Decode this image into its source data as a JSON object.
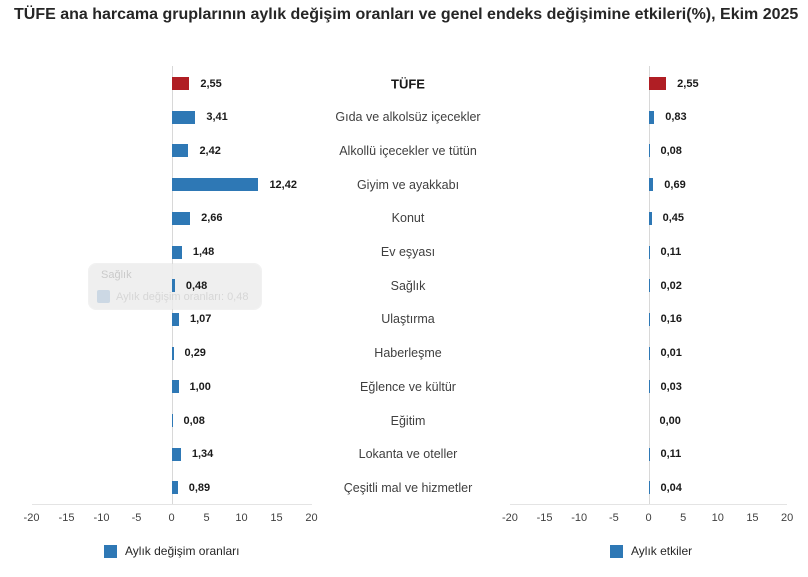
{
  "title": "TÜFE ana harcama gruplarının aylık değişim oranları ve genel endeks değişimine etkileri(%), Ekim 2025",
  "chart_data": {
    "type": "bar",
    "orientation": "horizontal",
    "categories": [
      "TÜFE",
      "Gıda ve alkolsüz içecekler",
      "Alkollü içecekler ve tütün",
      "Giyim ve ayakkabı",
      "Konut",
      "Ev eşyası",
      "Sağlık",
      "Ulaştırma",
      "Haberleşme",
      "Eğlence ve kültür",
      "Eğitim",
      "Lokanta ve oteller",
      "Çeşitli mal ve hizmetler"
    ],
    "series": [
      {
        "name": "Aylık değişim oranları",
        "values": [
          2.55,
          3.41,
          2.42,
          12.42,
          2.66,
          1.48,
          0.48,
          1.07,
          0.29,
          1.0,
          0.08,
          1.34,
          0.89
        ],
        "labels": [
          "2,55",
          "3,41",
          "2,42",
          "12,42",
          "2,66",
          "1,48",
          "0,48",
          "1,07",
          "0,29",
          "1,00",
          "0,08",
          "1,34",
          "0,89"
        ]
      },
      {
        "name": "Aylık etkiler",
        "values": [
          2.55,
          0.83,
          0.08,
          0.69,
          0.45,
          0.11,
          0.02,
          0.16,
          0.01,
          0.03,
          0.0,
          0.11,
          0.04
        ],
        "labels": [
          "2,55",
          "0,83",
          "0,08",
          "0,69",
          "0,45",
          "0,11",
          "0,02",
          "0,16",
          "0,01",
          "0,03",
          "0,00",
          "0,11",
          "0,04"
        ]
      }
    ],
    "xlim": [
      -20,
      20
    ],
    "ticks": [
      "-20",
      "-15",
      "-10",
      "-5",
      "0",
      "5",
      "10",
      "15",
      "20"
    ],
    "tick_values": [
      -20,
      -15,
      -10,
      -5,
      0,
      5,
      10,
      15,
      20
    ],
    "grid": "off",
    "legend_position": "bottom",
    "colors": {
      "bar_blue": "#2e78b5",
      "bar_red": "#b01e24",
      "zero_line": "#d8d8d8",
      "axis_line": "#e4e4e4"
    }
  },
  "tooltip": {
    "title": "Sağlık",
    "series": "Aylık değişim oranları",
    "value": "0,48",
    "text": "Aylık değişim oranları: 0,48"
  }
}
